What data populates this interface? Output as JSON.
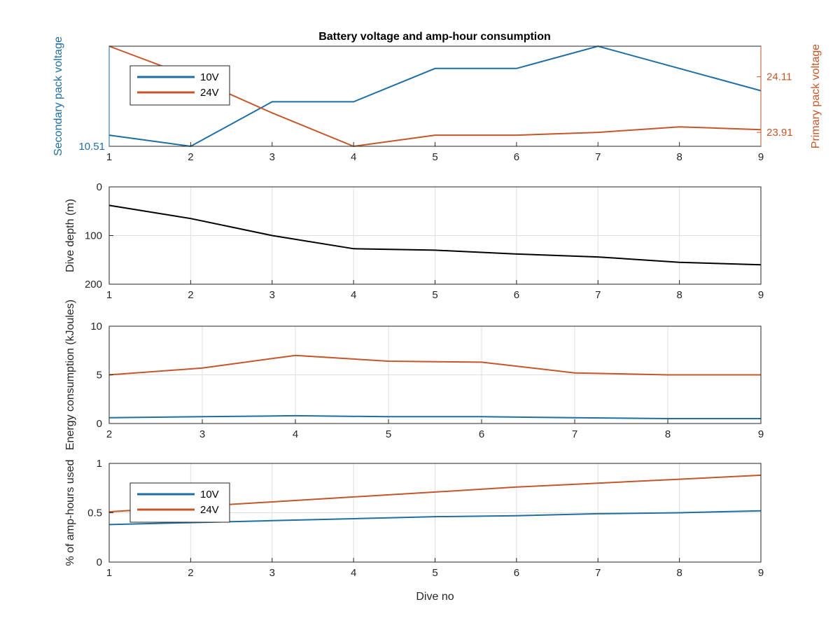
{
  "figure_title": "Battery voltage and amp-hour consumption",
  "colors": {
    "blue": "#1f6ea3",
    "orange": "#c5562a",
    "black": "#000000"
  },
  "chart_data": [
    {
      "id": "voltage",
      "type": "line",
      "title": "Battery voltage and amp-hour consumption",
      "xlabel": "",
      "x": [
        1,
        2,
        3,
        4,
        5,
        6,
        7,
        8,
        9
      ],
      "xlim": [
        1,
        9
      ],
      "xticks": [
        "1",
        "2",
        "3",
        "4",
        "5",
        "6",
        "7",
        "8",
        "9"
      ],
      "ylabel_left": "Secondary pack voltage",
      "ylabel_right": "Primary pack voltage",
      "ylim_left": [
        10.51,
        10.69
      ],
      "yticks_left": [
        "10.51"
      ],
      "ylim_right": [
        23.86,
        24.22
      ],
      "yticks_right": [
        "23.91",
        "24.11"
      ],
      "series": [
        {
          "name": "10V",
          "axis": "left",
          "color": "#1f6ea3",
          "values": [
            10.53,
            10.51,
            10.59,
            10.59,
            10.65,
            10.65,
            10.69,
            10.65,
            10.61
          ]
        },
        {
          "name": "24V",
          "axis": "right",
          "color": "#c5562a",
          "values": [
            24.22,
            24.11,
            23.98,
            23.86,
            23.9,
            23.9,
            23.91,
            23.93,
            23.92
          ]
        }
      ],
      "legend": {
        "position": "top-left",
        "entries": [
          "10V",
          "24V"
        ]
      },
      "grid": false
    },
    {
      "id": "depth",
      "type": "line",
      "xlabel": "",
      "x": [
        1,
        2,
        3,
        4,
        5,
        6,
        7,
        8,
        9
      ],
      "xlim": [
        1,
        9
      ],
      "xticks": [
        "1",
        "2",
        "3",
        "4",
        "5",
        "6",
        "7",
        "8",
        "9"
      ],
      "ylabel": "Dive depth (m)",
      "ylim": [
        0,
        200
      ],
      "y_reversed": true,
      "yticks": [
        "0",
        "100",
        "200"
      ],
      "series": [
        {
          "color": "#000000",
          "values": [
            38,
            65,
            100,
            127,
            130,
            138,
            144,
            155,
            160
          ]
        }
      ],
      "grid": true
    },
    {
      "id": "energy",
      "type": "line",
      "xlabel": "",
      "x": [
        2,
        3,
        4,
        5,
        6,
        7,
        8,
        9
      ],
      "xlim": [
        2,
        9
      ],
      "xticks": [
        "2",
        "3",
        "4",
        "5",
        "6",
        "7",
        "8",
        "9"
      ],
      "ylabel": "Energy consumption (kJoules)",
      "ylim": [
        0,
        10
      ],
      "yticks": [
        "0",
        "5",
        "10"
      ],
      "series": [
        {
          "color": "#c5562a",
          "values": [
            5.0,
            5.7,
            7.0,
            6.4,
            6.3,
            5.2,
            5.0,
            5.0
          ]
        },
        {
          "color": "#1f6ea3",
          "values": [
            0.6,
            0.7,
            0.8,
            0.7,
            0.7,
            0.6,
            0.5,
            0.5
          ]
        }
      ],
      "grid": true
    },
    {
      "id": "amphours",
      "type": "line",
      "xlabel": "Dive no",
      "x": [
        1,
        2,
        3,
        4,
        5,
        6,
        7,
        8,
        9
      ],
      "xlim": [
        1,
        9
      ],
      "xticks": [
        "1",
        "2",
        "3",
        "4",
        "5",
        "6",
        "7",
        "8",
        "9"
      ],
      "ylabel": "% of amp-hours used",
      "ylim": [
        0,
        1
      ],
      "yticks": [
        "0",
        "0.5",
        "1"
      ],
      "series": [
        {
          "name": "10V",
          "color": "#1f6ea3",
          "values": [
            0.38,
            0.4,
            0.42,
            0.44,
            0.46,
            0.47,
            0.49,
            0.5,
            0.52
          ]
        },
        {
          "name": "24V",
          "color": "#c5562a",
          "values": [
            0.51,
            0.56,
            0.61,
            0.66,
            0.71,
            0.76,
            0.8,
            0.84,
            0.88
          ]
        }
      ],
      "legend": {
        "position": "top-left",
        "entries": [
          "10V",
          "24V"
        ]
      },
      "grid": true
    }
  ]
}
